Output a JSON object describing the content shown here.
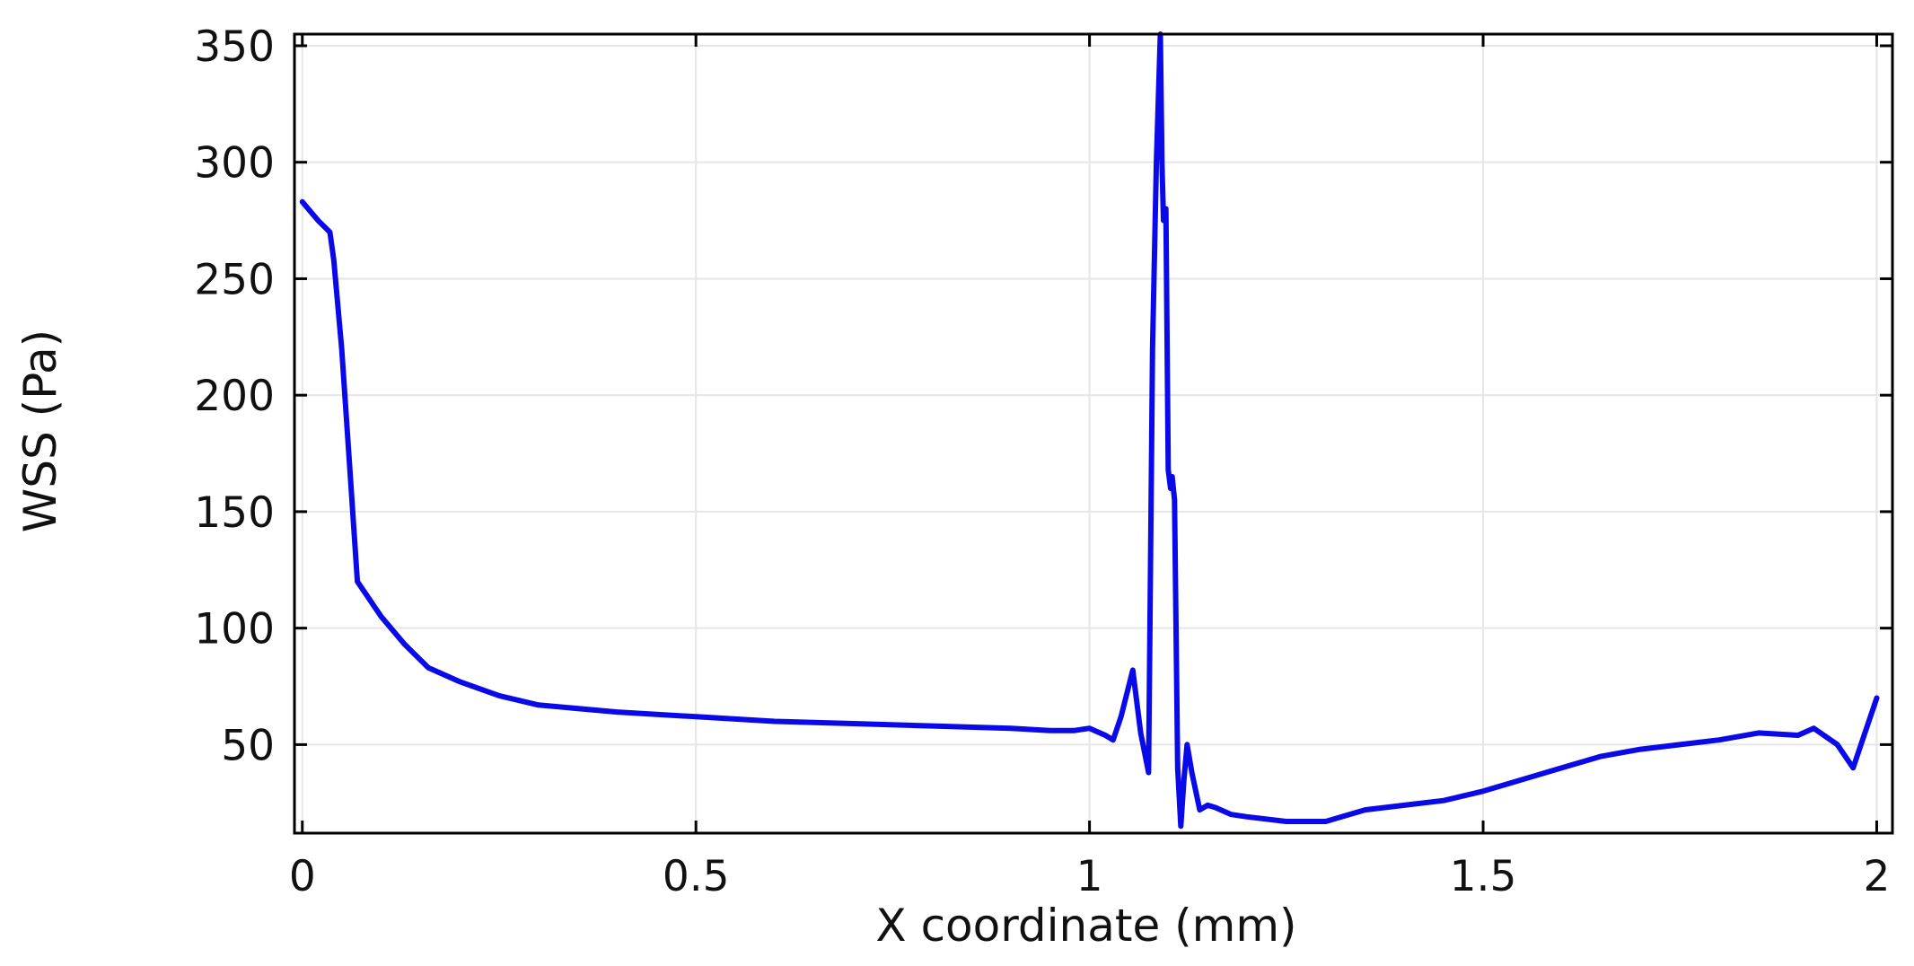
{
  "chart_data": {
    "type": "line",
    "title": "",
    "xlabel": "X coordinate (mm)",
    "ylabel": "WSS (Pa)",
    "xlim": [
      -0.01,
      2.02
    ],
    "ylim": [
      12,
      355
    ],
    "xticks": [
      0,
      0.5,
      1,
      1.5,
      2
    ],
    "xtick_labels": [
      "0",
      "0.5",
      "1",
      "1.5",
      "2"
    ],
    "yticks": [
      50,
      100,
      150,
      200,
      250,
      300,
      350
    ],
    "ytick_labels": [
      "50",
      "100",
      "150",
      "200",
      "250",
      "300",
      "350"
    ],
    "grid": true,
    "series": [
      {
        "color": "#0a0ae8",
        "x": [
          0,
          0.01,
          0.02,
          0.035,
          0.04,
          0.05,
          0.06,
          0.07,
          0.08,
          0.1,
          0.13,
          0.16,
          0.2,
          0.25,
          0.3,
          0.4,
          0.5,
          0.6,
          0.7,
          0.8,
          0.9,
          0.95,
          0.98,
          1.0,
          1.02,
          1.03,
          1.04,
          1.055,
          1.065,
          1.075,
          1.08,
          1.085,
          1.09,
          1.092,
          1.094,
          1.097,
          1.1,
          1.103,
          1.105,
          1.108,
          1.112,
          1.116,
          1.12,
          1.124,
          1.13,
          1.14,
          1.15,
          1.16,
          1.18,
          1.2,
          1.25,
          1.3,
          1.35,
          1.4,
          1.45,
          1.5,
          1.55,
          1.6,
          1.65,
          1.7,
          1.75,
          1.8,
          1.85,
          1.9,
          1.92,
          1.95,
          1.97,
          1.985,
          2.0
        ],
        "y": [
          283,
          279,
          275,
          270,
          258,
          220,
          170,
          120,
          115,
          105,
          93,
          83,
          77,
          71,
          67,
          64,
          62,
          60,
          59,
          58,
          57,
          56,
          56,
          57,
          54,
          52,
          62,
          82,
          55,
          38,
          220,
          300,
          355,
          300,
          275,
          280,
          168,
          160,
          165,
          155,
          40,
          15,
          35,
          50,
          38,
          22,
          24,
          23,
          20,
          19,
          17,
          17,
          22,
          24,
          26,
          30,
          35,
          40,
          45,
          48,
          50,
          52,
          55,
          54,
          57,
          50,
          40,
          55,
          70
        ]
      }
    ]
  }
}
